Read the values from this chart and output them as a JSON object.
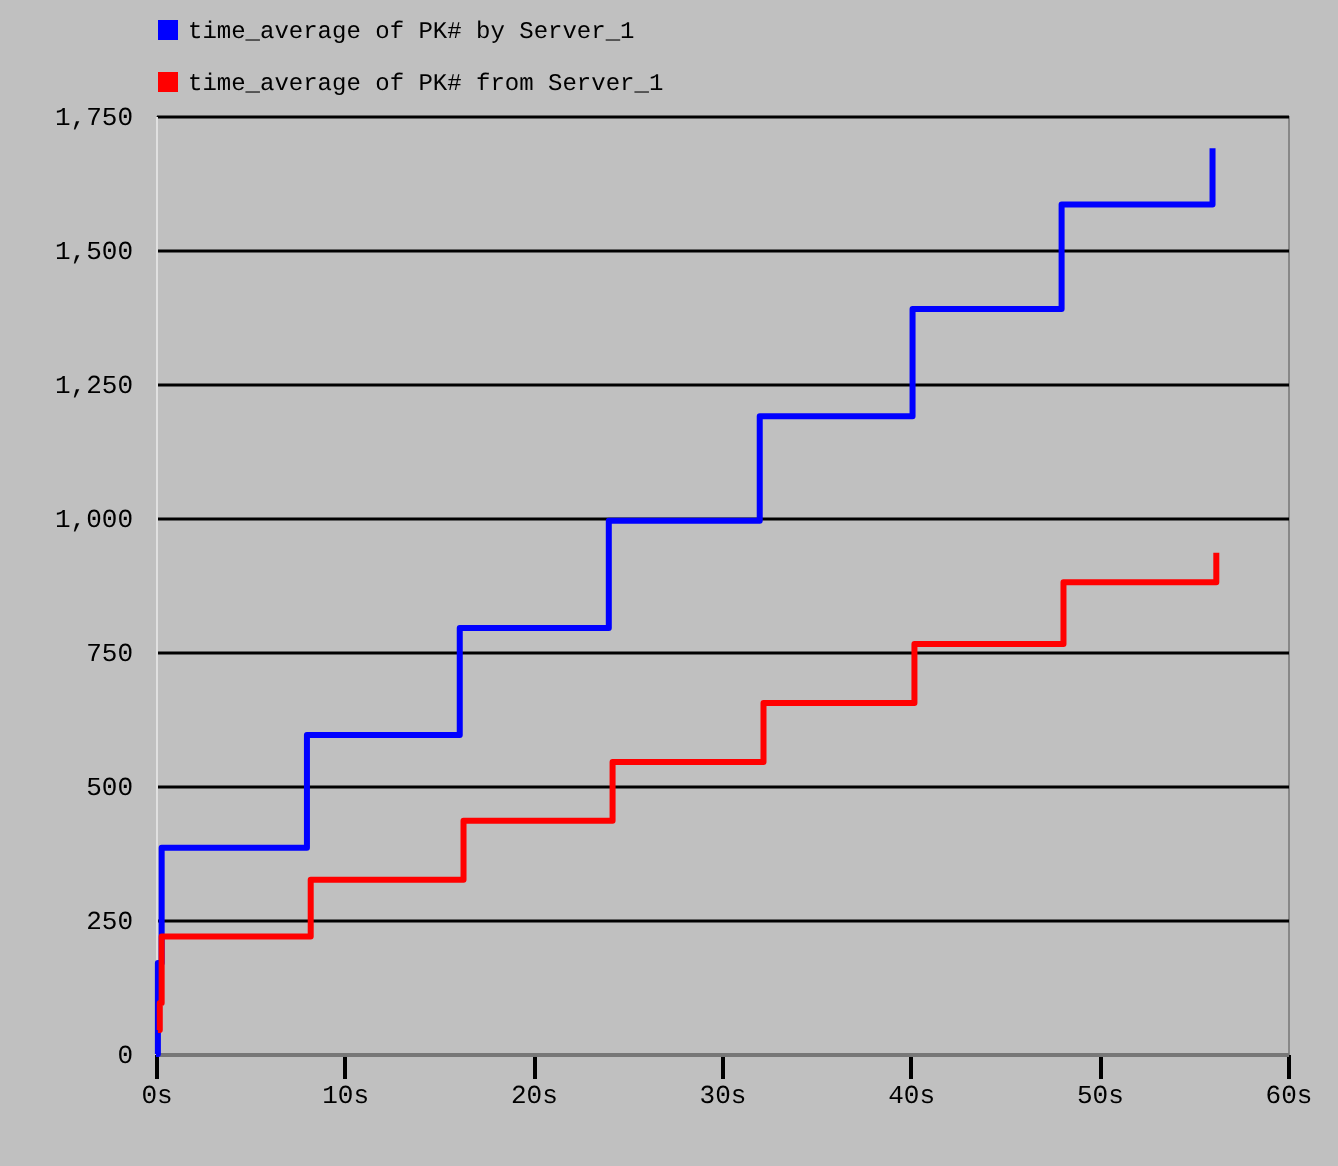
{
  "chart_data": {
    "type": "step",
    "xlim": [
      0,
      60
    ],
    "xticks": [
      {
        "value": 0,
        "label": "0s"
      },
      {
        "value": 10,
        "label": "10s"
      },
      {
        "value": 20,
        "label": "20s"
      },
      {
        "value": 30,
        "label": "30s"
      },
      {
        "value": 40,
        "label": "40s"
      },
      {
        "value": 50,
        "label": "50s"
      },
      {
        "value": 60,
        "label": "60s"
      }
    ],
    "ylim": [
      0,
      1750
    ],
    "yticks": [
      0,
      250,
      500,
      750,
      {
        "value": 1000,
        "label": "1,000"
      },
      {
        "value": 1250,
        "label": "1,250"
      },
      {
        "value": 1500,
        "label": "1,500"
      },
      {
        "value": 1750,
        "label": "1,750"
      }
    ],
    "grid": "y",
    "legend": "top left",
    "line_style": "solid",
    "marker": "none",
    "series": [
      {
        "name": "time_average of PK# by Server_1",
        "color": "#0000ff",
        "x": [
          0,
          0.1,
          0.3,
          8.0,
          16.1,
          24.0,
          32.0,
          40.1,
          48.0,
          56.0
        ],
        "values": [
          0,
          170,
          385,
          595,
          795,
          995,
          1190,
          1390,
          1585,
          1690
        ]
      },
      {
        "name": "time_average of PK# from Server_1",
        "color": "#ff0000",
        "x": [
          0.1,
          0.2,
          0.3,
          8.2,
          16.3,
          24.2,
          32.2,
          40.2,
          48.1,
          56.2
        ],
        "values": [
          45,
          95,
          219,
          325,
          435,
          545,
          655,
          765,
          880,
          935
        ]
      }
    ]
  }
}
